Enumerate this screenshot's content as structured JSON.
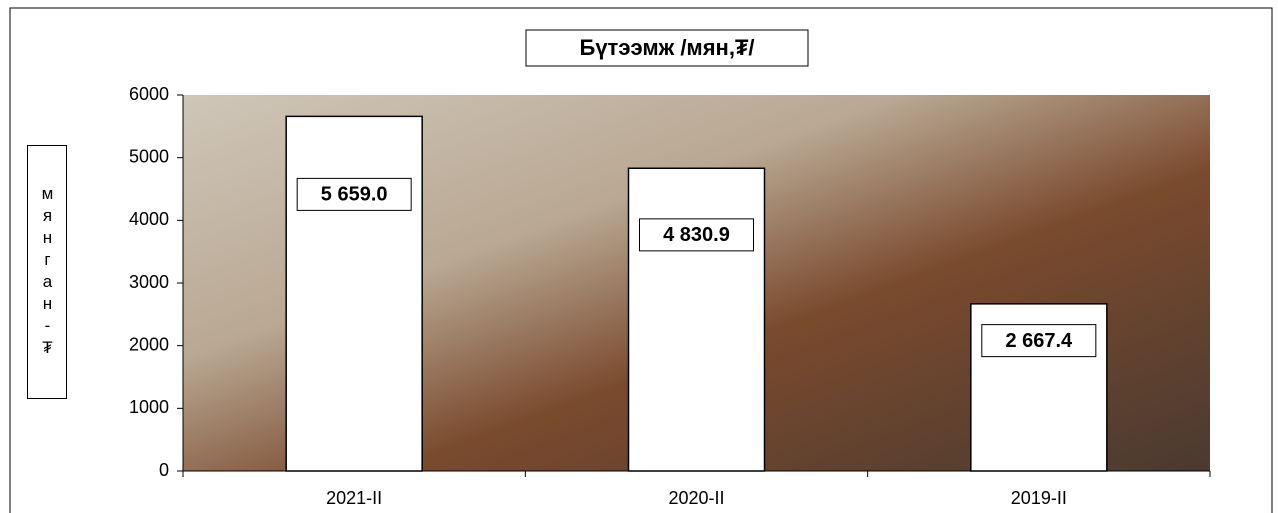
{
  "chart_data": {
    "type": "bar",
    "title": "Бүтээмж /мян,₮/",
    "y_label": "мянган-₮",
    "categories": [
      "2021-II",
      "2020-II",
      "2019-II"
    ],
    "values": [
      5659.0,
      4830.9,
      2667.4
    ],
    "value_labels": [
      "5 659.0",
      "4 830.9",
      "2 667.4"
    ],
    "color": "#ffffff",
    "ylim": [
      0,
      6000
    ],
    "yticks": [
      0,
      1000,
      2000,
      3000,
      4000,
      5000,
      6000
    ]
  }
}
